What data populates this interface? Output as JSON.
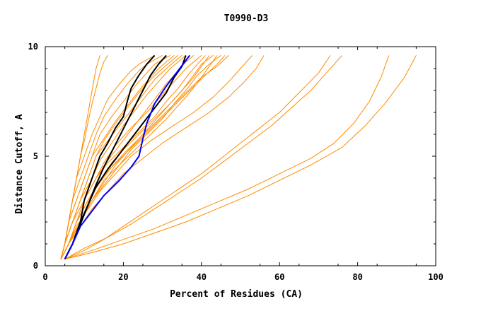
{
  "chart_data": {
    "type": "line",
    "title": "T0990-D3",
    "xlabel": "Percent of Residues (CA)",
    "ylabel": "Distance Cutoff, A",
    "xlim": [
      0,
      100
    ],
    "ylim": [
      0,
      10
    ],
    "x_ticks": [
      0,
      20,
      40,
      60,
      80,
      100
    ],
    "y_ticks": [
      0,
      5,
      10
    ],
    "x_tick_labels": [
      "0",
      "20",
      "40",
      "60",
      "80",
      "100"
    ],
    "y_tick_labels": [
      "0",
      "5",
      "10"
    ],
    "grid": false,
    "legend": "none",
    "colors": {
      "models": "#ff8c00",
      "highlight_black": "#000000",
      "highlight_blue": "#0000ff"
    },
    "series": [
      {
        "color": "#ff8c00",
        "x": [
          4,
          6,
          8,
          10,
          13,
          15,
          18,
          22,
          26,
          30,
          33,
          36,
          38,
          40
        ],
        "y": [
          0.3,
          1,
          2,
          3,
          4,
          4.7,
          5.5,
          6.3,
          7,
          7.8,
          8.4,
          9,
          9.3,
          9.6
        ]
      },
      {
        "color": "#ff8c00",
        "x": [
          4,
          6,
          9,
          12,
          15,
          18,
          22,
          26,
          29,
          32,
          35,
          38,
          40,
          42
        ],
        "y": [
          0.3,
          1,
          2,
          3,
          3.8,
          4.6,
          5.4,
          6.2,
          6.8,
          7.4,
          8,
          8.6,
          9.1,
          9.6
        ]
      },
      {
        "color": "#ff8c00",
        "x": [
          4,
          5,
          7,
          9,
          11,
          13,
          15,
          18,
          21,
          24,
          27,
          30,
          32,
          34
        ],
        "y": [
          0.3,
          1,
          2,
          3,
          4,
          5,
          5.7,
          6.5,
          7.2,
          7.9,
          8.5,
          9,
          9.3,
          9.6
        ]
      },
      {
        "color": "#ff8c00",
        "x": [
          4,
          5,
          6,
          8,
          10,
          12,
          14,
          17,
          20,
          23,
          26,
          28,
          30,
          32
        ],
        "y": [
          0.3,
          1,
          2,
          3,
          4,
          5,
          6,
          6.8,
          7.5,
          8.2,
          8.8,
          9.2,
          9.4,
          9.6
        ]
      },
      {
        "color": "#ff8c00",
        "x": [
          4,
          6,
          8,
          11,
          14,
          17,
          20,
          24,
          28,
          32,
          35,
          38,
          40,
          43
        ],
        "y": [
          0.3,
          1,
          2,
          3,
          3.9,
          4.7,
          5.3,
          6,
          6.7,
          7.4,
          8,
          8.7,
          9.2,
          9.6
        ]
      },
      {
        "color": "#ff8c00",
        "x": [
          4,
          5,
          7,
          9,
          12,
          14,
          17,
          20,
          23,
          26,
          29,
          32,
          34,
          36
        ],
        "y": [
          0.3,
          1,
          2,
          3,
          4,
          4.8,
          5.6,
          6.4,
          7.1,
          7.8,
          8.4,
          9,
          9.3,
          9.6
        ]
      },
      {
        "color": "#ff8c00",
        "x": [
          4,
          5,
          6,
          7,
          9,
          11,
          13,
          15,
          18,
          21,
          24,
          26,
          28,
          30
        ],
        "y": [
          0.3,
          1,
          2,
          3,
          4,
          5,
          6,
          6.8,
          7.6,
          8.3,
          8.9,
          9.2,
          9.4,
          9.6
        ]
      },
      {
        "color": "#ff8c00",
        "x": [
          4,
          6,
          9,
          12,
          16,
          19,
          23,
          27,
          31,
          34,
          37,
          40,
          42,
          44
        ],
        "y": [
          0.3,
          1,
          2,
          3,
          3.9,
          4.6,
          5.3,
          6,
          6.7,
          7.3,
          7.9,
          8.6,
          9.1,
          9.6
        ]
      },
      {
        "color": "#ff8c00",
        "x": [
          4,
          5,
          7,
          10,
          13,
          16,
          19,
          22,
          25,
          28,
          31,
          34,
          36,
          38
        ],
        "y": [
          0.3,
          1,
          2,
          3,
          4,
          4.8,
          5.5,
          6.2,
          6.9,
          7.6,
          8.3,
          8.9,
          9.3,
          9.6
        ]
      },
      {
        "color": "#ff8c00",
        "x": [
          4,
          5,
          6,
          8,
          10,
          12,
          15,
          18,
          21,
          24,
          27,
          29,
          31,
          33
        ],
        "y": [
          0.3,
          1,
          2,
          3,
          4,
          5,
          5.8,
          6.6,
          7.3,
          8,
          8.6,
          9,
          9.3,
          9.6
        ]
      },
      {
        "color": "#ff8c00",
        "x": [
          4,
          6,
          8,
          10,
          13,
          16,
          20,
          24,
          28,
          31,
          34,
          37,
          39,
          41
        ],
        "y": [
          0.3,
          1,
          2,
          3,
          4,
          4.7,
          5.4,
          6.1,
          6.8,
          7.5,
          8.1,
          8.8,
          9.2,
          9.6
        ]
      },
      {
        "color": "#ff8c00",
        "x": [
          4,
          5,
          7,
          9,
          11,
          13,
          16,
          19,
          22,
          25,
          28,
          31,
          33,
          35
        ],
        "y": [
          0.3,
          1,
          2,
          3,
          4,
          5,
          5.7,
          6.4,
          7.1,
          7.8,
          8.5,
          9,
          9.3,
          9.6
        ]
      },
      {
        "color": "#ff8c00",
        "x": [
          4,
          6,
          9,
          12,
          15,
          19,
          22,
          26,
          30,
          33,
          36,
          39,
          42,
          45
        ],
        "y": [
          0.3,
          1,
          2,
          3,
          3.9,
          4.6,
          5.3,
          6,
          6.7,
          7.4,
          8,
          8.7,
          9.2,
          9.6
        ]
      },
      {
        "color": "#ff8c00",
        "x": [
          4,
          5,
          6,
          7,
          8,
          10,
          12,
          14,
          16,
          19,
          22,
          24,
          26,
          28
        ],
        "y": [
          0.3,
          1,
          2,
          3,
          4,
          5,
          6,
          6.8,
          7.6,
          8.3,
          8.9,
          9.2,
          9.4,
          9.6
        ]
      },
      {
        "color": "#ff8c00",
        "x": [
          4,
          5,
          6,
          7,
          8,
          9,
          10,
          11,
          12,
          13,
          14
        ],
        "y": [
          0.3,
          1,
          2,
          3,
          4,
          5,
          6,
          7,
          8,
          9,
          9.6
        ]
      },
      {
        "color": "#ff8c00",
        "x": [
          4,
          5,
          6,
          7,
          8,
          9,
          10,
          11,
          12,
          13,
          14,
          15,
          16
        ],
        "y": [
          0.3,
          1,
          2,
          3,
          4,
          5,
          5.7,
          6.6,
          7.4,
          8.1,
          8.8,
          9.3,
          9.6
        ]
      },
      {
        "color": "#ff8c00",
        "x": [
          4,
          6,
          8,
          11,
          14,
          17,
          21,
          25,
          29,
          33,
          37,
          41,
          44,
          46
        ],
        "y": [
          0.3,
          1,
          2,
          3,
          3.9,
          4.5,
          5.2,
          5.9,
          6.6,
          7.3,
          8,
          8.7,
          9.2,
          9.6
        ]
      },
      {
        "color": "#ff8c00",
        "x": [
          4,
          6,
          8,
          11,
          14,
          17,
          20,
          24,
          28,
          32,
          36,
          40,
          44,
          47
        ],
        "y": [
          0.3,
          1,
          2,
          3,
          3.8,
          4.5,
          5.1,
          5.8,
          6.5,
          7.2,
          7.9,
          8.6,
          9.1,
          9.6
        ]
      },
      {
        "color": "#ff8c00",
        "x": [
          4,
          6,
          8,
          11,
          14,
          18,
          22,
          27,
          32,
          38,
          43,
          47,
          50,
          53
        ],
        "y": [
          0.3,
          1,
          1.8,
          2.6,
          3.4,
          4.2,
          5,
          5.7,
          6.3,
          7,
          7.7,
          8.4,
          9,
          9.6
        ]
      },
      {
        "color": "#ff8c00",
        "x": [
          4,
          6,
          9,
          12,
          16,
          20,
          25,
          30,
          36,
          42,
          47,
          51,
          54,
          56
        ],
        "y": [
          0.3,
          1,
          1.8,
          2.6,
          3.4,
          4.2,
          4.9,
          5.6,
          6.3,
          7,
          7.7,
          8.4,
          9,
          9.6
        ]
      },
      {
        "color": "#ff8c00",
        "x": [
          5,
          10,
          15,
          20,
          25,
          30,
          35,
          40,
          45,
          50,
          55,
          60,
          65,
          70,
          73
        ],
        "y": [
          0.3,
          0.7,
          1.2,
          1.8,
          2.4,
          3,
          3.6,
          4.2,
          4.9,
          5.6,
          6.3,
          7,
          7.9,
          8.8,
          9.6
        ]
      },
      {
        "color": "#ff8c00",
        "x": [
          5,
          10,
          16,
          22,
          28,
          34,
          40,
          46,
          52,
          58,
          63,
          68,
          72,
          76
        ],
        "y": [
          0.3,
          0.8,
          1.3,
          1.9,
          2.6,
          3.3,
          4,
          4.8,
          5.6,
          6.4,
          7.2,
          8,
          8.8,
          9.6
        ]
      },
      {
        "color": "#ff8c00",
        "x": [
          5,
          12,
          20,
          28,
          36,
          44,
          52,
          60,
          68,
          74,
          79,
          83,
          86,
          88
        ],
        "y": [
          0.3,
          0.7,
          1.2,
          1.7,
          2.3,
          2.9,
          3.5,
          4.2,
          4.9,
          5.6,
          6.5,
          7.5,
          8.6,
          9.6
        ]
      },
      {
        "color": "#ff8c00",
        "x": [
          5,
          12,
          20,
          28,
          36,
          44,
          52,
          60,
          68,
          76,
          82,
          87,
          92,
          95
        ],
        "y": [
          0.3,
          0.6,
          1,
          1.5,
          2,
          2.6,
          3.2,
          3.9,
          4.6,
          5.4,
          6.4,
          7.4,
          8.6,
          9.6
        ]
      },
      {
        "color": "#000000",
        "x": [
          5,
          7,
          9,
          10,
          12,
          14,
          16,
          18,
          20,
          21,
          22,
          24,
          26,
          28
        ],
        "y": [
          0.3,
          1,
          2,
          3,
          4,
          5,
          5.6,
          6.3,
          6.8,
          7.5,
          8.1,
          8.7,
          9.2,
          9.6
        ]
      },
      {
        "color": "#000000",
        "x": [
          5,
          7,
          9,
          11,
          13,
          15,
          17,
          19,
          21,
          23,
          25,
          27,
          29,
          31
        ],
        "y": [
          0.3,
          1,
          1.9,
          2.8,
          3.7,
          4.5,
          5.2,
          5.9,
          6.6,
          7.3,
          8,
          8.7,
          9.2,
          9.6
        ]
      },
      {
        "color": "#000000",
        "x": [
          5,
          7,
          9,
          11,
          13,
          16,
          19,
          22,
          25,
          28,
          31,
          33,
          35,
          36
        ],
        "y": [
          0.3,
          1,
          2,
          2.8,
          3.6,
          4.4,
          5.1,
          5.8,
          6.5,
          7.2,
          7.9,
          8.6,
          9.1,
          9.6
        ]
      },
      {
        "color": "#0000ff",
        "x": [
          5,
          7,
          9,
          12,
          15,
          19,
          22,
          24,
          25,
          26,
          28,
          31,
          34,
          37
        ],
        "y": [
          0.3,
          1,
          1.8,
          2.5,
          3.2,
          3.9,
          4.5,
          5,
          5.8,
          6.5,
          7.4,
          8.2,
          8.9,
          9.6
        ]
      }
    ]
  }
}
